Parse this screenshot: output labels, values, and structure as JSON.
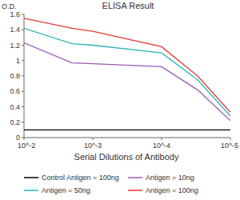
{
  "chart_data": {
    "type": "line",
    "title": "ELISA Result",
    "y_label": "O.D.",
    "x_label": "Serial Dilutions of Antibody",
    "log": "x",
    "grid": false,
    "legend": "bottom",
    "x": [
      0.01,
      0.002,
      0.001,
      0.0001,
      3e-05,
      1e-05
    ],
    "xlim": [
      0.01,
      1e-05
    ],
    "xticks": [
      {
        "value": 0.01,
        "label": "10^-2"
      },
      {
        "value": 0.001,
        "label": "10^-3"
      },
      {
        "value": 0.0001,
        "label": "10^-4"
      },
      {
        "value": 1e-05,
        "label": "10^-5"
      }
    ],
    "ylim": [
      0,
      1.6
    ],
    "yticks": [
      0,
      0.2,
      0.4,
      0.6,
      0.8,
      1,
      1.2,
      1.4,
      1.6
    ],
    "series": [
      {
        "name": "Control Antigen = 100ng",
        "color": "#000000",
        "values": [
          0.1,
          0.1,
          0.1,
          0.1,
          0.1,
          0.1
        ]
      },
      {
        "name": "Antigen = 10ng",
        "color": "#9b59b6",
        "values": [
          1.23,
          0.97,
          0.96,
          0.92,
          0.62,
          0.22
        ]
      },
      {
        "name": "Antigen = 50ng",
        "color": "#2bb5b8",
        "values": [
          1.42,
          1.22,
          1.2,
          1.1,
          0.75,
          0.28
        ]
      },
      {
        "name": "Antigen = 100ng",
        "color": "#e53935",
        "values": [
          1.55,
          1.42,
          1.38,
          1.18,
          0.8,
          0.33
        ]
      }
    ]
  }
}
